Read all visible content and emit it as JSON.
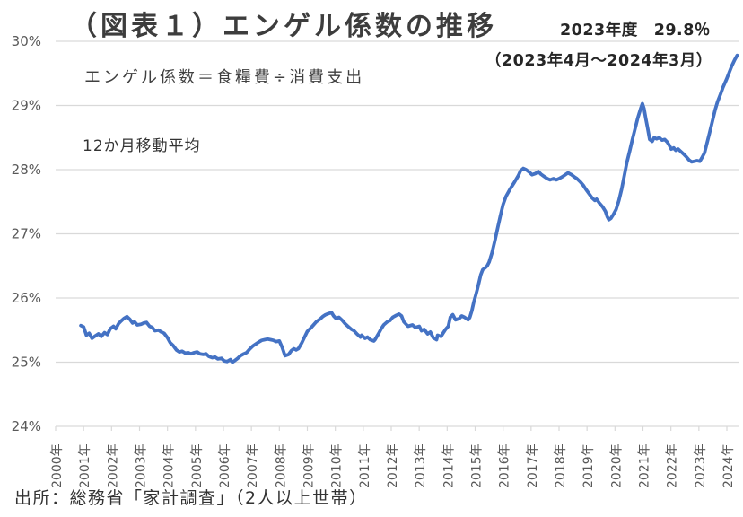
{
  "title": "（図表１）エンゲル係数の推移",
  "annotations": {
    "latest_value": "2023年度　29.8％",
    "latest_period": "（2023年4月～2024年3月）",
    "formula": "エンゲル係数＝食糧費÷消費支出",
    "moving_average_note": "12か月移動平均",
    "source": "出所：総務省「家計調査」（2人以上世帯）"
  },
  "colors": {
    "line": "#4472C4",
    "gridline": "#D9D9D9",
    "axis_label": "#595959",
    "text": "#3d3d3d"
  },
  "chart_data": {
    "type": "line",
    "title": "（図表１）エンゲル係数の推移",
    "xlabel": "",
    "ylabel": "",
    "ylim": [
      24,
      30
    ],
    "xlim": [
      2000,
      2024.6
    ],
    "grid": "horizontal-only",
    "legend": "none",
    "line_color": "#4472C4",
    "y_tick_labels": [
      "24%",
      "25%",
      "26%",
      "27%",
      "28%",
      "29%",
      "30%"
    ],
    "x_tick_labels": [
      "2000年",
      "2001年",
      "2002年",
      "2003年",
      "2004年",
      "2005年",
      "2006年",
      "2007年",
      "2008年",
      "2009年",
      "2010年",
      "2011年",
      "2012年",
      "2013年",
      "2014年",
      "2015年",
      "2016年",
      "2017年",
      "2018年",
      "2019年",
      "2020年",
      "2021年",
      "2022年",
      "2023年",
      "2024年"
    ],
    "series": [
      {
        "name": "エンゲル係数（12か月移動平均）",
        "points": [
          [
            2000.9,
            25.57
          ],
          [
            2001.0,
            25.55
          ],
          [
            2001.1,
            25.42
          ],
          [
            2001.2,
            25.45
          ],
          [
            2001.3,
            25.37
          ],
          [
            2001.42,
            25.41
          ],
          [
            2001.53,
            25.44
          ],
          [
            2001.63,
            25.4
          ],
          [
            2001.75,
            25.46
          ],
          [
            2001.85,
            25.43
          ],
          [
            2001.95,
            25.52
          ],
          [
            2002.07,
            25.56
          ],
          [
            2002.15,
            25.52
          ],
          [
            2002.25,
            25.6
          ],
          [
            2002.34,
            25.64
          ],
          [
            2002.44,
            25.68
          ],
          [
            2002.55,
            25.71
          ],
          [
            2002.65,
            25.67
          ],
          [
            2002.75,
            25.61
          ],
          [
            2002.82,
            25.63
          ],
          [
            2002.92,
            25.58
          ],
          [
            2003.05,
            25.59
          ],
          [
            2003.15,
            25.61
          ],
          [
            2003.25,
            25.62
          ],
          [
            2003.36,
            25.56
          ],
          [
            2003.46,
            25.54
          ],
          [
            2003.55,
            25.49
          ],
          [
            2003.68,
            25.5
          ],
          [
            2003.78,
            25.47
          ],
          [
            2003.88,
            25.45
          ],
          [
            2004.0,
            25.38
          ],
          [
            2004.1,
            25.3
          ],
          [
            2004.2,
            25.26
          ],
          [
            2004.32,
            25.19
          ],
          [
            2004.42,
            25.16
          ],
          [
            2004.52,
            25.17
          ],
          [
            2004.64,
            25.14
          ],
          [
            2004.74,
            25.15
          ],
          [
            2004.84,
            25.13
          ],
          [
            2004.96,
            25.15
          ],
          [
            2005.06,
            25.16
          ],
          [
            2005.16,
            25.13
          ],
          [
            2005.28,
            25.12
          ],
          [
            2005.38,
            25.13
          ],
          [
            2005.48,
            25.09
          ],
          [
            2005.6,
            25.07
          ],
          [
            2005.7,
            25.08
          ],
          [
            2005.8,
            25.05
          ],
          [
            2005.93,
            25.06
          ],
          [
            2006.03,
            25.02
          ],
          [
            2006.13,
            25.01
          ],
          [
            2006.25,
            25.04
          ],
          [
            2006.32,
            25.0
          ],
          [
            2006.42,
            25.03
          ],
          [
            2006.51,
            25.06
          ],
          [
            2006.61,
            25.1
          ],
          [
            2006.73,
            25.13
          ],
          [
            2006.83,
            25.15
          ],
          [
            2006.93,
            25.2
          ],
          [
            2007.05,
            25.25
          ],
          [
            2007.15,
            25.28
          ],
          [
            2007.25,
            25.31
          ],
          [
            2007.37,
            25.34
          ],
          [
            2007.47,
            25.35
          ],
          [
            2007.57,
            25.36
          ],
          [
            2007.69,
            25.35
          ],
          [
            2007.79,
            25.34
          ],
          [
            2007.88,
            25.32
          ],
          [
            2008.0,
            25.33
          ],
          [
            2008.1,
            25.23
          ],
          [
            2008.2,
            25.1
          ],
          [
            2008.33,
            25.12
          ],
          [
            2008.43,
            25.18
          ],
          [
            2008.52,
            25.21
          ],
          [
            2008.6,
            25.19
          ],
          [
            2008.68,
            25.21
          ],
          [
            2008.8,
            25.3
          ],
          [
            2008.9,
            25.39
          ],
          [
            2009.0,
            25.48
          ],
          [
            2009.12,
            25.53
          ],
          [
            2009.22,
            25.58
          ],
          [
            2009.32,
            25.63
          ],
          [
            2009.45,
            25.67
          ],
          [
            2009.55,
            25.71
          ],
          [
            2009.65,
            25.74
          ],
          [
            2009.77,
            25.76
          ],
          [
            2009.87,
            25.77
          ],
          [
            2009.94,
            25.72
          ],
          [
            2010.03,
            25.68
          ],
          [
            2010.13,
            25.7
          ],
          [
            2010.25,
            25.65
          ],
          [
            2010.35,
            25.6
          ],
          [
            2010.45,
            25.56
          ],
          [
            2010.58,
            25.51
          ],
          [
            2010.67,
            25.49
          ],
          [
            2010.77,
            25.44
          ],
          [
            2010.9,
            25.39
          ],
          [
            2010.94,
            25.42
          ],
          [
            2011.06,
            25.37
          ],
          [
            2011.15,
            25.39
          ],
          [
            2011.25,
            25.35
          ],
          [
            2011.38,
            25.33
          ],
          [
            2011.42,
            25.35
          ],
          [
            2011.54,
            25.44
          ],
          [
            2011.64,
            25.52
          ],
          [
            2011.73,
            25.58
          ],
          [
            2011.86,
            25.63
          ],
          [
            2011.96,
            25.65
          ],
          [
            2012.05,
            25.7
          ],
          [
            2012.18,
            25.73
          ],
          [
            2012.28,
            25.75
          ],
          [
            2012.37,
            25.72
          ],
          [
            2012.45,
            25.63
          ],
          [
            2012.6,
            25.56
          ],
          [
            2012.76,
            25.58
          ],
          [
            2012.86,
            25.54
          ],
          [
            2013.0,
            25.56
          ],
          [
            2013.08,
            25.49
          ],
          [
            2013.18,
            25.51
          ],
          [
            2013.3,
            25.44
          ],
          [
            2013.4,
            25.47
          ],
          [
            2013.5,
            25.38
          ],
          [
            2013.62,
            25.35
          ],
          [
            2013.66,
            25.42
          ],
          [
            2013.78,
            25.4
          ],
          [
            2013.88,
            25.47
          ],
          [
            2013.94,
            25.51
          ],
          [
            2014.04,
            25.56
          ],
          [
            2014.11,
            25.7
          ],
          [
            2014.2,
            25.74
          ],
          [
            2014.3,
            25.66
          ],
          [
            2014.43,
            25.68
          ],
          [
            2014.52,
            25.72
          ],
          [
            2014.62,
            25.7
          ],
          [
            2014.75,
            25.66
          ],
          [
            2014.81,
            25.7
          ],
          [
            2014.88,
            25.8
          ],
          [
            2014.95,
            25.93
          ],
          [
            2015.02,
            26.04
          ],
          [
            2015.08,
            26.14
          ],
          [
            2015.14,
            26.25
          ],
          [
            2015.2,
            26.36
          ],
          [
            2015.27,
            26.44
          ],
          [
            2015.36,
            26.47
          ],
          [
            2015.43,
            26.5
          ],
          [
            2015.5,
            26.56
          ],
          [
            2015.6,
            26.7
          ],
          [
            2015.7,
            26.88
          ],
          [
            2015.8,
            27.08
          ],
          [
            2015.9,
            27.28
          ],
          [
            2016.0,
            27.46
          ],
          [
            2016.1,
            27.58
          ],
          [
            2016.25,
            27.7
          ],
          [
            2016.4,
            27.8
          ],
          [
            2016.55,
            27.91
          ],
          [
            2016.62,
            27.98
          ],
          [
            2016.72,
            28.02
          ],
          [
            2016.82,
            28.0
          ],
          [
            2016.94,
            27.96
          ],
          [
            2017.03,
            27.92
          ],
          [
            2017.16,
            27.94
          ],
          [
            2017.26,
            27.97
          ],
          [
            2017.35,
            27.93
          ],
          [
            2017.48,
            27.89
          ],
          [
            2017.58,
            27.86
          ],
          [
            2017.68,
            27.84
          ],
          [
            2017.8,
            27.86
          ],
          [
            2017.9,
            27.84
          ],
          [
            2018.0,
            27.86
          ],
          [
            2018.12,
            27.89
          ],
          [
            2018.22,
            27.92
          ],
          [
            2018.32,
            27.95
          ],
          [
            2018.45,
            27.92
          ],
          [
            2018.54,
            27.89
          ],
          [
            2018.64,
            27.86
          ],
          [
            2018.76,
            27.81
          ],
          [
            2018.86,
            27.76
          ],
          [
            2018.95,
            27.7
          ],
          [
            2019.08,
            27.62
          ],
          [
            2019.18,
            27.56
          ],
          [
            2019.28,
            27.52
          ],
          [
            2019.34,
            27.54
          ],
          [
            2019.44,
            27.48
          ],
          [
            2019.56,
            27.42
          ],
          [
            2019.66,
            27.35
          ],
          [
            2019.72,
            27.27
          ],
          [
            2019.78,
            27.22
          ],
          [
            2019.85,
            27.24
          ],
          [
            2019.94,
            27.3
          ],
          [
            2020.04,
            27.38
          ],
          [
            2020.14,
            27.52
          ],
          [
            2020.24,
            27.7
          ],
          [
            2020.34,
            27.92
          ],
          [
            2020.43,
            28.12
          ],
          [
            2020.53,
            28.3
          ],
          [
            2020.62,
            28.47
          ],
          [
            2020.72,
            28.64
          ],
          [
            2020.81,
            28.8
          ],
          [
            2020.91,
            28.94
          ],
          [
            2020.98,
            29.03
          ],
          [
            2021.04,
            28.95
          ],
          [
            2021.1,
            28.8
          ],
          [
            2021.17,
            28.64
          ],
          [
            2021.24,
            28.47
          ],
          [
            2021.33,
            28.44
          ],
          [
            2021.4,
            28.5
          ],
          [
            2021.49,
            28.48
          ],
          [
            2021.58,
            28.5
          ],
          [
            2021.68,
            28.46
          ],
          [
            2021.78,
            28.47
          ],
          [
            2021.87,
            28.43
          ],
          [
            2021.94,
            28.38
          ],
          [
            2022.01,
            28.32
          ],
          [
            2022.1,
            28.34
          ],
          [
            2022.17,
            28.3
          ],
          [
            2022.26,
            28.32
          ],
          [
            2022.36,
            28.28
          ],
          [
            2022.46,
            28.24
          ],
          [
            2022.55,
            28.2
          ],
          [
            2022.65,
            28.15
          ],
          [
            2022.74,
            28.12
          ],
          [
            2022.84,
            28.13
          ],
          [
            2022.93,
            28.14
          ],
          [
            2023.03,
            28.13
          ],
          [
            2023.1,
            28.18
          ],
          [
            2023.2,
            28.26
          ],
          [
            2023.28,
            28.4
          ],
          [
            2023.38,
            28.57
          ],
          [
            2023.48,
            28.75
          ],
          [
            2023.58,
            28.93
          ],
          [
            2023.67,
            29.06
          ],
          [
            2023.77,
            29.17
          ],
          [
            2023.86,
            29.28
          ],
          [
            2023.99,
            29.41
          ],
          [
            2024.09,
            29.52
          ],
          [
            2024.18,
            29.62
          ],
          [
            2024.28,
            29.71
          ],
          [
            2024.37,
            29.78
          ]
        ]
      }
    ]
  }
}
